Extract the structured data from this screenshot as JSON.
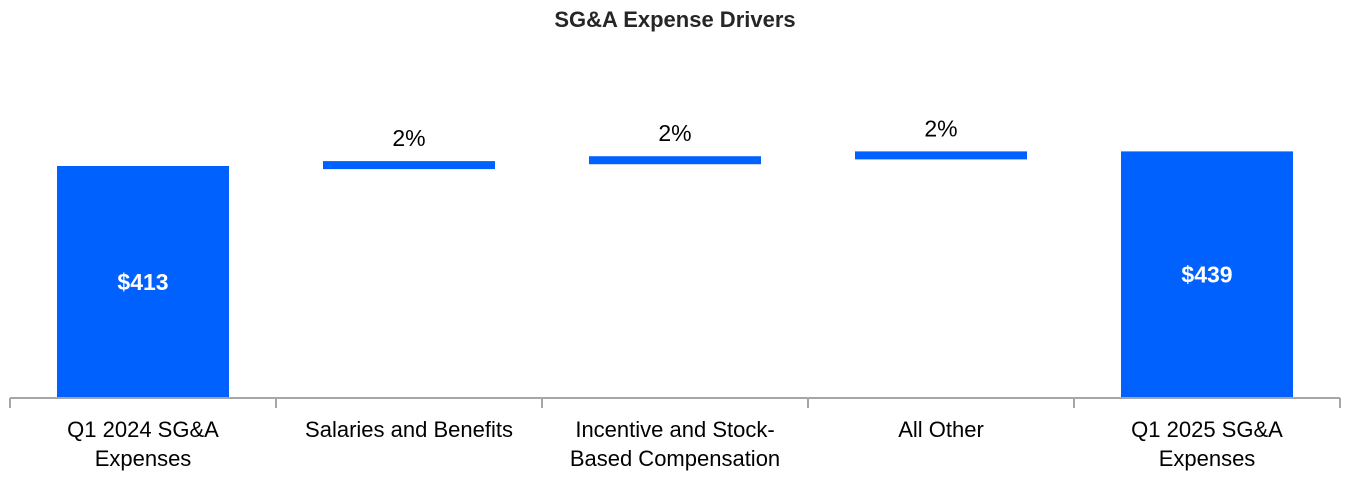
{
  "chart_data": {
    "type": "bar",
    "subtype": "waterfall",
    "title": "SG&A Expense Drivers",
    "xlabel": "",
    "ylabel": "",
    "unit": "$M",
    "categories": [
      [
        "Q1 2024 SG&A",
        "Expenses"
      ],
      [
        "Salaries and Benefits"
      ],
      [
        "Incentive and Stock-",
        "Based Compensation"
      ],
      [
        "All Other"
      ],
      [
        "Q1 2025 SG&A",
        "Expenses"
      ]
    ],
    "bars": [
      {
        "kind": "total",
        "start": 0,
        "end": 413,
        "label": "$413"
      },
      {
        "kind": "delta",
        "start": 413,
        "end": 421.7,
        "label": "2%"
      },
      {
        "kind": "delta",
        "start": 421.7,
        "end": 430.4,
        "label": "2%"
      },
      {
        "kind": "delta",
        "start": 430.4,
        "end": 439,
        "label": "2%"
      },
      {
        "kind": "total",
        "start": 0,
        "end": 439,
        "label": "$439"
      }
    ],
    "ylim": [
      0,
      530
    ],
    "grid": false,
    "legend": "none",
    "colors": {
      "bar": "#0061FE",
      "axis": "#A6A6A6"
    }
  }
}
